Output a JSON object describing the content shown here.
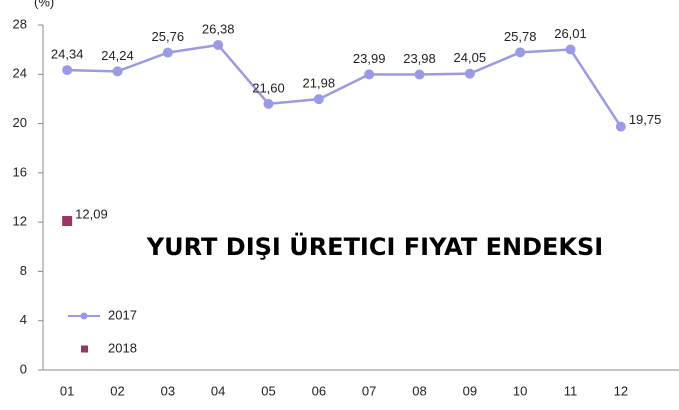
{
  "chart_data": {
    "type": "line",
    "title": "YURT DIŞI ÜRETICI FIYAT ENDEKSI",
    "y_label": "(%)",
    "categories": [
      "01",
      "02",
      "03",
      "04",
      "05",
      "06",
      "07",
      "08",
      "09",
      "10",
      "11",
      "12"
    ],
    "series": [
      {
        "name": "2017",
        "color": "#9b9be3",
        "marker": "circle",
        "values": [
          24.34,
          24.24,
          25.76,
          26.38,
          21.6,
          21.98,
          23.99,
          23.98,
          24.05,
          25.78,
          26.01,
          19.75
        ],
        "value_labels": [
          "24,34",
          "24,24",
          "25,76",
          "26,38",
          "21,60",
          "21,98",
          "23,99",
          "23,98",
          "24,05",
          "25,78",
          "26,01",
          "19,75"
        ]
      },
      {
        "name": "2018",
        "color": "#993366",
        "marker": "square",
        "values": [
          12.09,
          null,
          null,
          null,
          null,
          null,
          null,
          null,
          null,
          null,
          null,
          null
        ],
        "value_labels": [
          "12,09",
          null,
          null,
          null,
          null,
          null,
          null,
          null,
          null,
          null,
          null,
          null
        ]
      }
    ],
    "ylim": [
      0,
      28
    ],
    "yticks": [
      0,
      4,
      8,
      12,
      16,
      20,
      24,
      28
    ],
    "legend": "lower left"
  }
}
